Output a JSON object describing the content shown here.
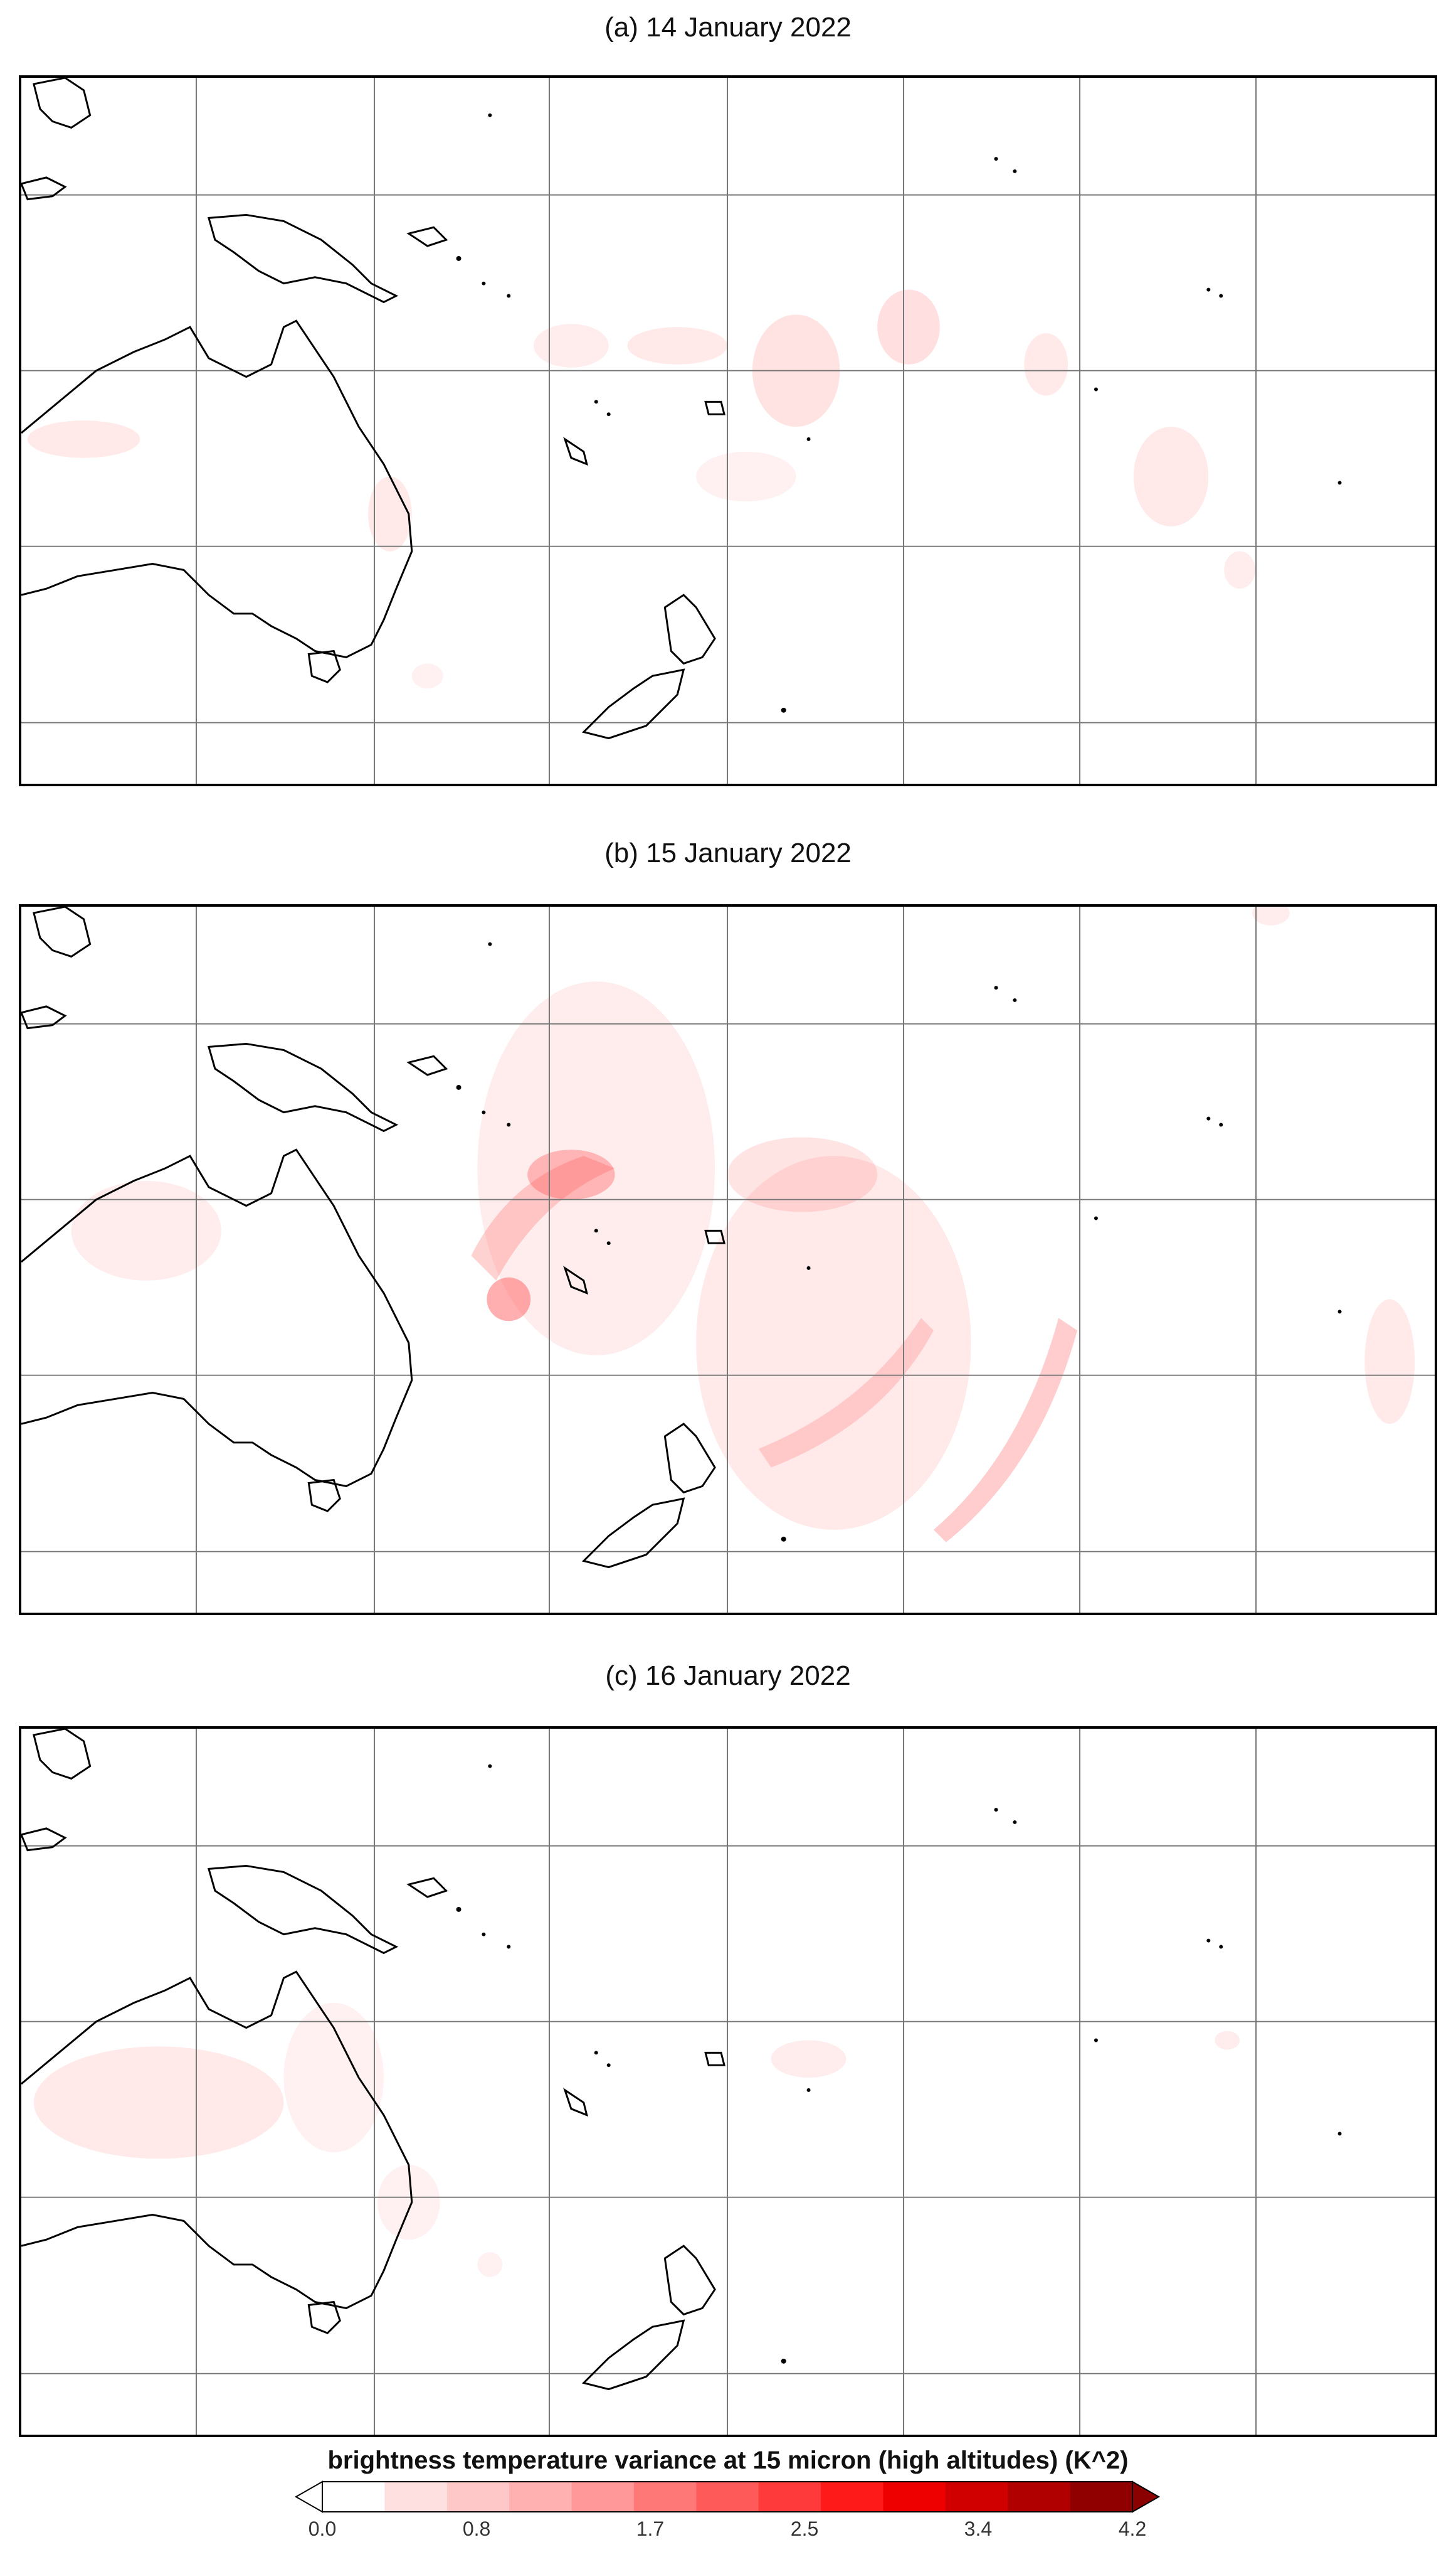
{
  "panels": [
    {
      "id": "a",
      "title": "(a) 14 January 2022"
    },
    {
      "id": "b",
      "title": "(b) 15 January 2022"
    },
    {
      "id": "c",
      "title": "(c) 16 January 2022"
    }
  ],
  "colorbar": {
    "title": "brightness temperature variance at 15 micron (high altitudes) (K^2)",
    "ticks": [
      "0.0",
      "0.8",
      "1.7",
      "2.5",
      "3.4",
      "4.2"
    ],
    "min": 0.0,
    "max": 4.2,
    "colors": [
      "#ffffff",
      "#ffe0e0",
      "#ffc8c8",
      "#ffb0b0",
      "#ff9898",
      "#ff7878",
      "#ff5a5a",
      "#ff3a3a",
      "#ff1a1a",
      "#ee0000",
      "#d00000",
      "#b00000",
      "#900000"
    ],
    "under_color": "#ffffff",
    "over_color": "#8b0000"
  },
  "map": {
    "coastline_color": "#000000",
    "gridline_color": "#777777",
    "shading_color": "#ff4d4d"
  }
}
